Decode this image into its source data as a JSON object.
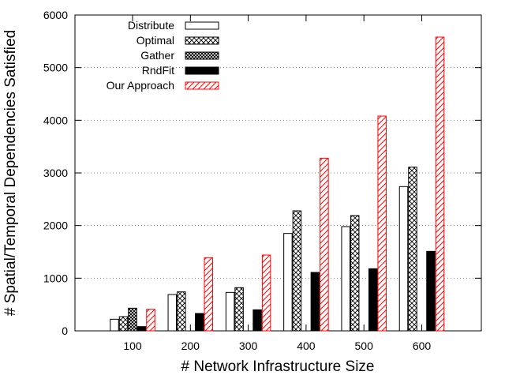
{
  "chart_data": {
    "type": "bar",
    "title": "",
    "xlabel": "# Network Infrastructure Size",
    "ylabel": "# Spatial/Temporal Dependencies Satisfied",
    "categories": [
      "100",
      "200",
      "300",
      "400",
      "500",
      "600"
    ],
    "ylim": [
      0,
      6000
    ],
    "yticks": [
      0,
      1000,
      2000,
      3000,
      4000,
      5000,
      6000
    ],
    "grid": "horizontal-dotted",
    "legend_position": "top-left",
    "series": [
      {
        "name": "Distribute",
        "values": [
          220,
          690,
          730,
          1850,
          1980,
          2740
        ],
        "pattern": "white-solid",
        "color": "#000000"
      },
      {
        "name": "Optimal",
        "values": [
          270,
          740,
          820,
          2280,
          2190,
          3110
        ],
        "pattern": "crosshatch",
        "color": "#000000"
      },
      {
        "name": "Gather",
        "values": [
          430,
          0,
          0,
          0,
          0,
          0
        ],
        "pattern": "dense-crosshatch",
        "color": "#000000"
      },
      {
        "name": "RndFit",
        "values": [
          80,
          330,
          400,
          1110,
          1180,
          1510
        ],
        "pattern": "solid-black",
        "color": "#000000"
      },
      {
        "name": "Our Approach",
        "values": [
          410,
          1390,
          1440,
          3280,
          4080,
          5580
        ],
        "pattern": "diagonal-hatch",
        "color": "#ff0000"
      }
    ]
  }
}
